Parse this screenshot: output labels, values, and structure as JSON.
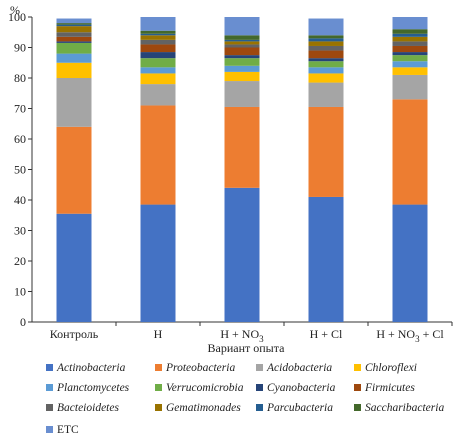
{
  "chart_data": {
    "type": "bar",
    "stacked": true,
    "ylabel": "%",
    "xlabel": "Вариант опыта",
    "ylim": [
      0,
      100
    ],
    "yticks": [
      0,
      10,
      20,
      30,
      40,
      50,
      60,
      70,
      80,
      90,
      100
    ],
    "grid": false,
    "legend_position": "bottom",
    "categories": [
      {
        "label": "Контроль"
      },
      {
        "label": "H"
      },
      {
        "label": "H + NO",
        "sub": "3"
      },
      {
        "label": "H + Cl"
      },
      {
        "label": "H + NO",
        "sub": "3",
        "suffix": " + Cl"
      }
    ],
    "series": [
      {
        "name": "Actinobacteria",
        "color": "#4472c4",
        "italic": true,
        "values": [
          35.5,
          38.5,
          44,
          41,
          38.5
        ]
      },
      {
        "name": "Proteobacteria",
        "color": "#ed7d31",
        "italic": true,
        "values": [
          28.5,
          32.5,
          26.5,
          29.5,
          34.5
        ]
      },
      {
        "name": "Acidobacteria",
        "color": "#a5a5a5",
        "italic": true,
        "values": [
          16,
          7,
          8.5,
          8,
          8
        ]
      },
      {
        "name": "Chloroflexi",
        "color": "#ffc000",
        "italic": true,
        "values": [
          5,
          3.5,
          3,
          3,
          2.5
        ]
      },
      {
        "name": "Planctomycetes",
        "color": "#5b9bd5",
        "italic": true,
        "values": [
          3,
          2,
          2,
          2,
          2
        ]
      },
      {
        "name": "Verrucomicrobia",
        "color": "#70ad47",
        "italic": true,
        "values": [
          3.5,
          3,
          2.5,
          2,
          2
        ]
      },
      {
        "name": "Cyanobacteria",
        "color": "#264478",
        "italic": true,
        "values": [
          0.5,
          2,
          1,
          1,
          1
        ]
      },
      {
        "name": "Firmicutes",
        "color": "#9e480e",
        "italic": true,
        "values": [
          1.5,
          2.5,
          2.5,
          2.5,
          2
        ]
      },
      {
        "name": "Bacteioidetes",
        "color": "#636363",
        "italic": true,
        "values": [
          1.5,
          1.5,
          1,
          1.5,
          1.5
        ]
      },
      {
        "name": "Gematimonades",
        "color": "#997300",
        "italic": true,
        "values": [
          2,
          1.5,
          1,
          1.5,
          1.5
        ]
      },
      {
        "name": "Parcubacteria",
        "color": "#255e91",
        "italic": true,
        "values": [
          0.5,
          0.5,
          0.5,
          1,
          1
        ]
      },
      {
        "name": "Saccharibacteria",
        "color": "#43682b",
        "italic": true,
        "values": [
          0.5,
          1,
          1.5,
          1,
          1.5
        ]
      },
      {
        "name": "ETC",
        "color": "#698ed0",
        "italic": false,
        "values": [
          1.5,
          4.5,
          6,
          5.5,
          4
        ]
      }
    ]
  }
}
